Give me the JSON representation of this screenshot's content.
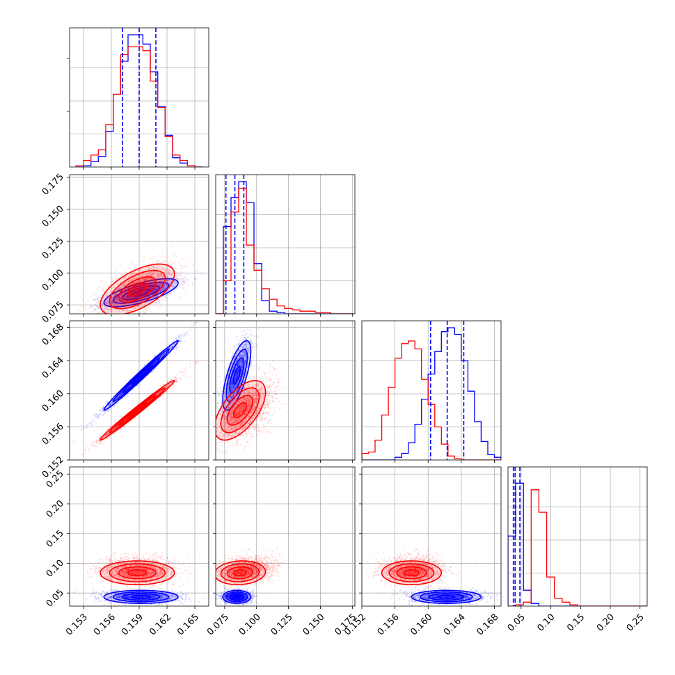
{
  "chart_data": {
    "type": "corner",
    "title": "",
    "series": [
      {
        "name": "",
        "color": "#0000ff"
      },
      {
        "name": "",
        "color": "#ff0000"
      }
    ],
    "params": [
      {
        "index": 0,
        "label": "",
        "range": [
          0.1515,
          0.1665
        ],
        "ticks": [
          "0.153",
          "0.156",
          "0.159",
          "0.162",
          "0.165"
        ]
      },
      {
        "index": 1,
        "label": "",
        "range": [
          0.068,
          0.177
        ],
        "ticks": [
          "0.075",
          "0.100",
          "0.125",
          "0.150",
          "0.175"
        ]
      },
      {
        "index": 2,
        "label": "",
        "range": [
          0.152,
          0.1688
        ],
        "ticks": [
          "0.152",
          "0.156",
          "0.160",
          "0.164",
          "0.168"
        ]
      },
      {
        "index": 3,
        "label": "",
        "range": [
          0.028,
          0.262
        ],
        "ticks": [
          "0.05",
          "0.10",
          "0.15",
          "0.20",
          "0.25"
        ]
      }
    ],
    "quantile_lines": [
      [
        0.1572,
        0.159,
        0.1608
      ],
      [
        0.076,
        0.083,
        0.09
      ],
      [
        0.1603,
        0.1623,
        0.1643
      ],
      [
        0.037,
        0.04,
        0.048
      ]
    ],
    "hist_1d": [
      {
        "param": 0,
        "bins": [
          0.1522,
          0.153,
          0.1538,
          0.1546,
          0.1554,
          0.1562,
          0.157,
          0.1578,
          0.1586,
          0.1594,
          0.1602,
          0.161,
          0.1618,
          0.1626,
          0.1634,
          0.1642,
          0.165,
          0.1658
        ],
        "blue": [
          0.0,
          0.01,
          0.04,
          0.08,
          0.27,
          0.55,
          0.8,
          1.0,
          1.0,
          0.93,
          0.72,
          0.46,
          0.24,
          0.07,
          0.03,
          0.01,
          0.0
        ],
        "red": [
          0.01,
          0.05,
          0.09,
          0.13,
          0.32,
          0.55,
          0.85,
          0.91,
          0.91,
          0.88,
          0.65,
          0.45,
          0.23,
          0.09,
          0.05,
          0.01,
          0.0
        ]
      },
      {
        "param": 1,
        "bins": [
          0.068,
          0.074,
          0.08,
          0.086,
          0.092,
          0.098,
          0.104,
          0.11,
          0.116,
          0.122,
          0.128,
          0.134,
          0.14,
          0.146,
          0.152,
          0.158,
          0.164,
          0.17,
          0.176
        ],
        "blue": [
          0.0,
          0.66,
          0.88,
          1.0,
          0.84,
          0.38,
          0.1,
          0.02,
          0.01,
          0.0,
          0.0,
          0.0,
          0.0,
          0.0,
          0.0,
          0.0,
          0.0,
          0.0
        ],
        "red": [
          0.0,
          0.25,
          0.77,
          0.95,
          0.52,
          0.33,
          0.19,
          0.11,
          0.06,
          0.04,
          0.03,
          0.02,
          0.02,
          0.01,
          0.01,
          0.0,
          0.0,
          0.0
        ]
      },
      {
        "param": 2,
        "bins": [
          0.152,
          0.1528,
          0.1536,
          0.1544,
          0.1552,
          0.156,
          0.1568,
          0.1576,
          0.1584,
          0.1592,
          0.16,
          0.1608,
          0.1616,
          0.1624,
          0.1632,
          0.164,
          0.1648,
          0.1656,
          0.1664,
          0.1672,
          0.168,
          0.1688
        ],
        "blue": [
          0.0,
          0.0,
          0.0,
          0.0,
          0.0,
          0.02,
          0.05,
          0.13,
          0.27,
          0.46,
          0.65,
          0.82,
          0.97,
          1.0,
          0.95,
          0.75,
          0.52,
          0.29,
          0.14,
          0.04,
          0.02
        ],
        "red": [
          0.05,
          0.06,
          0.15,
          0.34,
          0.55,
          0.77,
          0.88,
          0.9,
          0.84,
          0.61,
          0.42,
          0.25,
          0.12,
          0.03,
          0.01,
          0.0,
          0.0,
          0.0,
          0.0,
          0.0,
          0.0
        ]
      },
      {
        "param": 3,
        "bins": [
          0.028,
          0.041,
          0.054,
          0.067,
          0.08,
          0.093,
          0.106,
          0.119,
          0.132,
          0.145,
          0.158,
          0.171,
          0.184,
          0.197,
          0.21,
          0.223,
          0.236,
          0.249,
          0.262
        ],
        "blue": [
          0.53,
          0.93,
          0.12,
          0.02,
          0.0,
          0.0,
          0.0,
          0.0,
          0.0,
          0.0,
          0.0,
          0.0,
          0.0,
          0.0,
          0.0,
          0.0,
          0.0,
          0.0
        ],
        "red": [
          0.0,
          0.01,
          0.03,
          0.88,
          0.71,
          0.22,
          0.06,
          0.03,
          0.01,
          0.0,
          0.0,
          0.0,
          0.0,
          0.0,
          0.0,
          0.0,
          0.0,
          0.0
        ]
      }
    ],
    "distributions": {
      "blue": {
        "mean": [
          0.1592,
          0.0845,
          0.1622,
          0.0435
        ],
        "std": [
          0.002,
          0.0055,
          0.0021,
          0.0055
        ],
        "corr": [
          [
            1.0,
            0.7,
            0.99,
            0.0
          ],
          [
            0.7,
            1.0,
            0.7,
            0.0
          ],
          [
            0.99,
            0.7,
            1.0,
            0.0
          ],
          [
            0.0,
            0.0,
            0.0,
            1.0
          ]
        ]
      },
      "red": {
        "mean": [
          0.1588,
          0.087,
          0.158,
          0.084
        ],
        "std": [
          0.002,
          0.01,
          0.0018,
          0.01
        ],
        "corr": [
          [
            1.0,
            0.6,
            0.99,
            0.0
          ],
          [
            0.6,
            1.0,
            0.6,
            0.1
          ],
          [
            0.99,
            0.6,
            1.0,
            0.0
          ],
          [
            0.0,
            0.1,
            0.0,
            1.0
          ]
        ]
      }
    },
    "grid": true,
    "legend": "none"
  }
}
